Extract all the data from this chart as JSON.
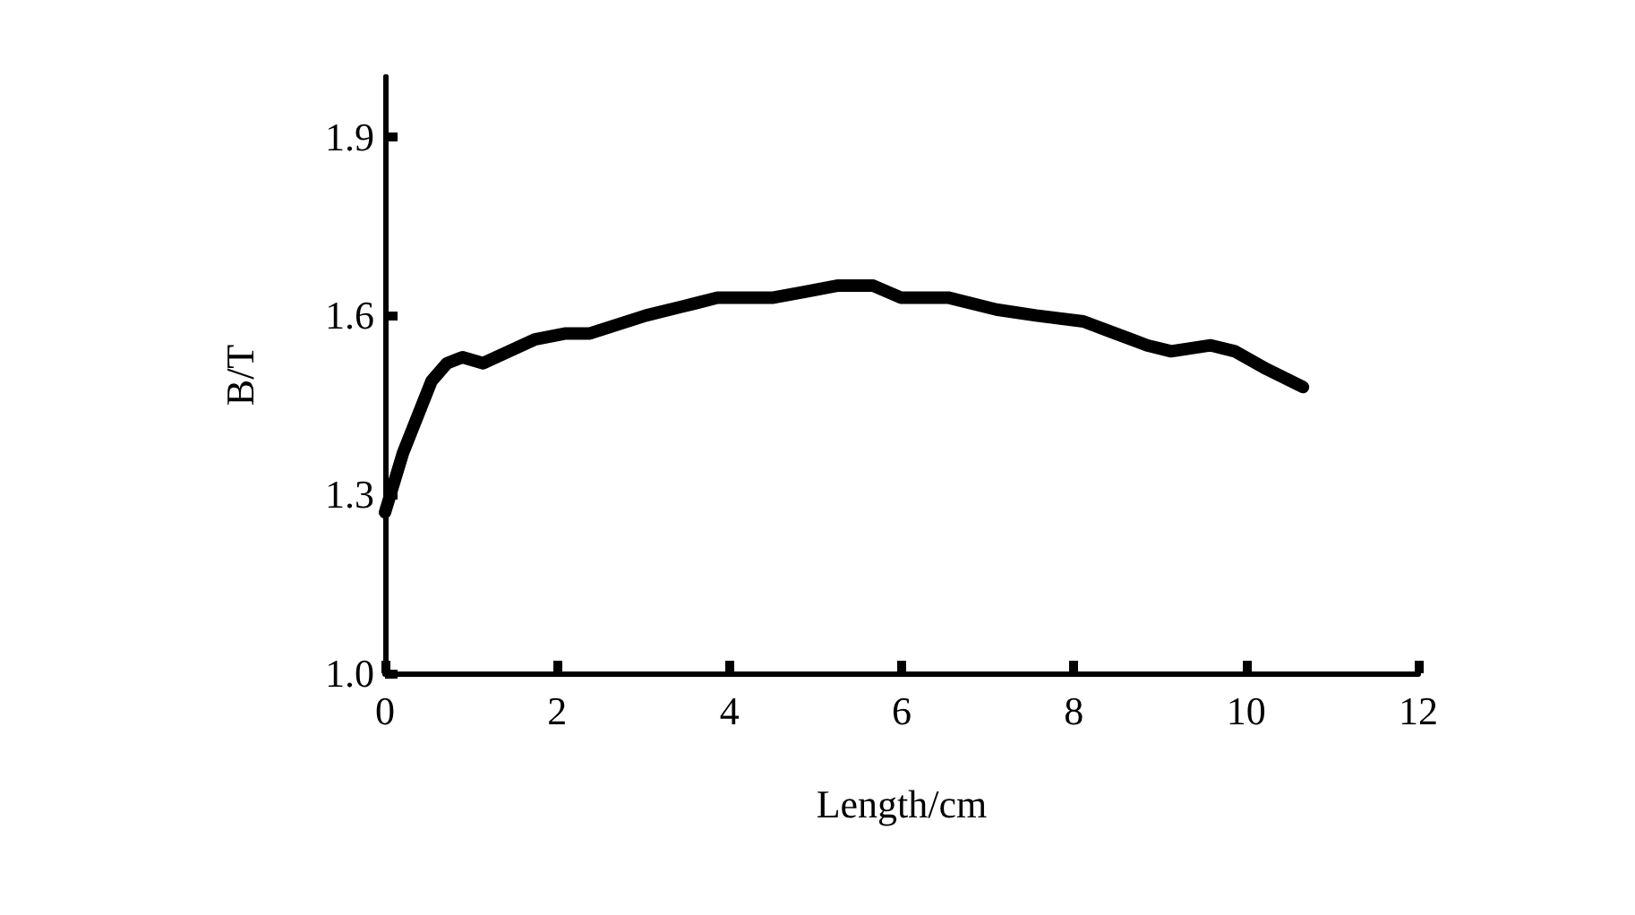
{
  "chart_data": {
    "type": "line",
    "xlabel": "Length/cm",
    "ylabel": "B/T",
    "x": [
      0,
      0.21,
      0.54,
      0.72,
      0.9,
      1.14,
      1.74,
      2.1,
      2.38,
      3.03,
      3.59,
      3.86,
      4.51,
      4.88,
      5.25,
      5.67,
      5.99,
      6.54,
      7.1,
      7.56,
      8.11,
      8.48,
      8.85,
      9.13,
      9.59,
      9.87,
      10.24,
      10.66
    ],
    "series": [
      {
        "color": "#000000",
        "values": [
          1.27,
          1.37,
          1.49,
          1.52,
          1.53,
          1.52,
          1.56,
          1.57,
          1.57,
          1.6,
          1.62,
          1.63,
          1.63,
          1.64,
          1.65,
          1.65,
          1.63,
          1.63,
          1.61,
          1.6,
          1.59,
          1.57,
          1.55,
          1.54,
          1.55,
          1.54,
          1.51,
          1.48
        ]
      }
    ],
    "xlim": [
      0,
      12
    ],
    "xticks": [
      0,
      2,
      4,
      6,
      8,
      10,
      12
    ],
    "ylim": [
      1.0,
      2.0
    ],
    "yticks": [
      {
        "value": 1.0,
        "label": "1.0"
      },
      1.3,
      1.6,
      1.9
    ],
    "grid": false,
    "line_style": "solid"
  }
}
